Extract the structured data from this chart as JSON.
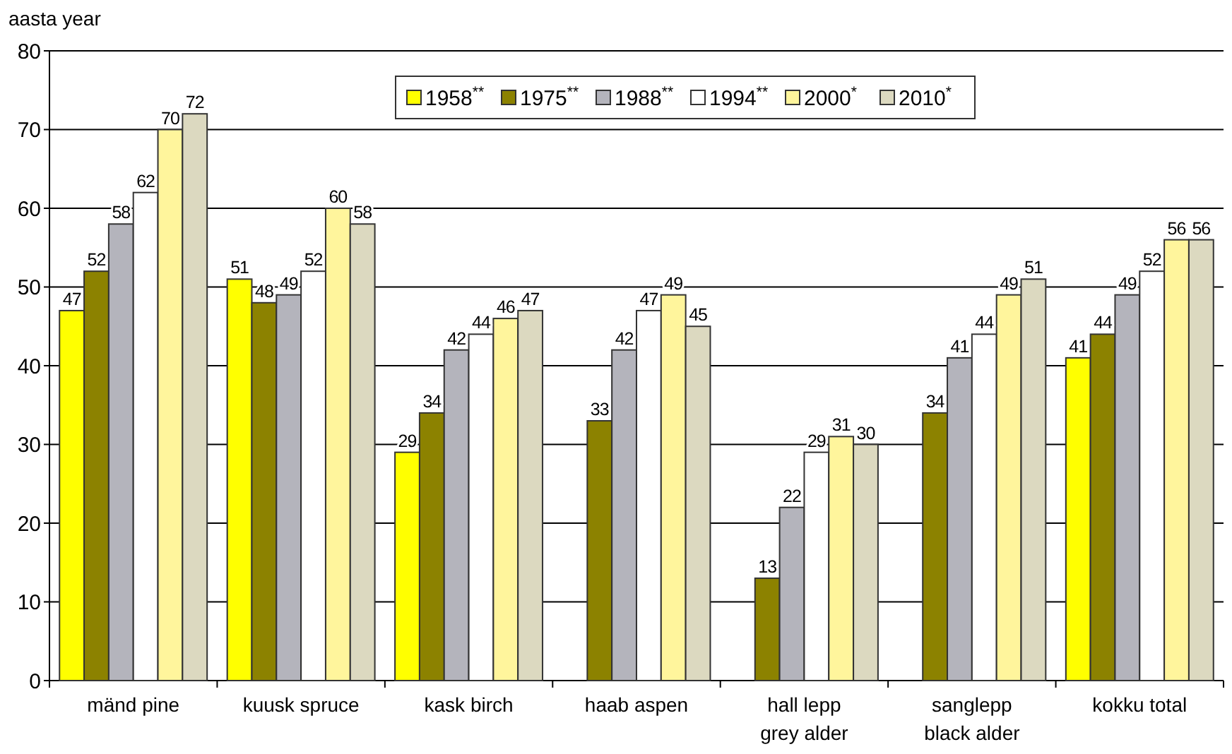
{
  "chart_data": {
    "type": "bar",
    "ylabel": "aasta year",
    "categories": [
      "mänd pine",
      "kuusk spruce",
      "kask birch",
      "haab aspen",
      "hall lepp\ngrey alder",
      "sanglepp\nblack alder",
      "kokku total"
    ],
    "series": [
      {
        "name": "1958$^{**}$",
        "color": "#ffff00",
        "values": [
          47,
          51,
          29,
          null,
          null,
          null,
          41
        ]
      },
      {
        "name": "1975$^{**}$",
        "color": "#8c8200",
        "values": [
          52,
          48,
          34,
          33,
          13,
          34,
          44
        ]
      },
      {
        "name": "1988$^{**}$",
        "color": "#b4b4bc",
        "values": [
          58,
          49,
          42,
          42,
          22,
          41,
          49
        ]
      },
      {
        "name": "1994$^{**}$",
        "color": "#ffffff",
        "values": [
          62,
          52,
          44,
          47,
          29,
          44,
          52
        ]
      },
      {
        "name": "2000$^{*}$",
        "color": "#fff59c",
        "values": [
          70,
          60,
          46,
          49,
          31,
          49,
          56
        ]
      },
      {
        "name": "2010$^{*}$",
        "color": "#dcd9c0",
        "values": [
          72,
          58,
          47,
          45,
          30,
          51,
          56
        ]
      }
    ],
    "ylim": [
      0,
      80
    ],
    "yticks": [
      0,
      10,
      20,
      30,
      40,
      50,
      60,
      70,
      80
    ],
    "grid": "y",
    "legend": "top right",
    "data_labels": true
  }
}
